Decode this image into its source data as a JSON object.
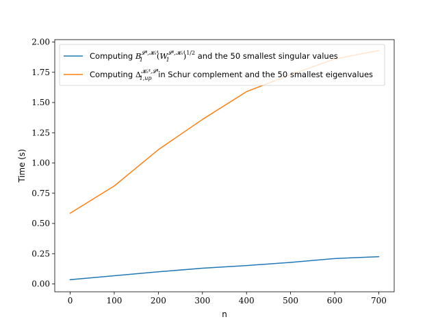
{
  "chart_data": {
    "type": "line",
    "title": "",
    "xlabel": "n",
    "ylabel": "Time (s)",
    "xlim": [
      -35,
      735
    ],
    "ylim": [
      -0.065,
      2.02
    ],
    "xticks": [
      0,
      100,
      200,
      300,
      400,
      500,
      600,
      700
    ],
    "yticks": [
      0.0,
      0.25,
      0.5,
      0.75,
      1.0,
      1.25,
      1.5,
      1.75,
      2.0
    ],
    "ytick_labels": [
      "0.00",
      "0.25",
      "0.50",
      "0.75",
      "1.00",
      "1.25",
      "1.50",
      "1.75",
      "2.00"
    ],
    "grid": false,
    "legend": "top-left",
    "x": [
      0,
      100,
      200,
      300,
      400,
      500,
      600,
      700
    ],
    "series": [
      {
        "name": "Computing B_1^{L^4,K_n^4}(W_1^{L^4,K_n^4})^{1/2} and the 50 smallest singular values",
        "legend_parts": {
          "prefix": "Computing ",
          "suffix": " and the 50 smallest singular values"
        },
        "color": "#1f77b4",
        "values": [
          0.035,
          0.068,
          0.1,
          0.13,
          0.152,
          0.178,
          0.21,
          0.225
        ]
      },
      {
        "name": "Computing Δ_{1,up}^{K_n^4,L^4} in Schur complement and the 50 smallest eigenvalues",
        "legend_parts": {
          "prefix": "Computing ",
          "suffix": " in Schur complement and the 50 smallest eigenvalues"
        },
        "color": "#ff7f0e",
        "values": [
          0.585,
          0.81,
          1.11,
          1.36,
          1.59,
          1.73,
          1.86,
          1.93
        ]
      }
    ]
  }
}
